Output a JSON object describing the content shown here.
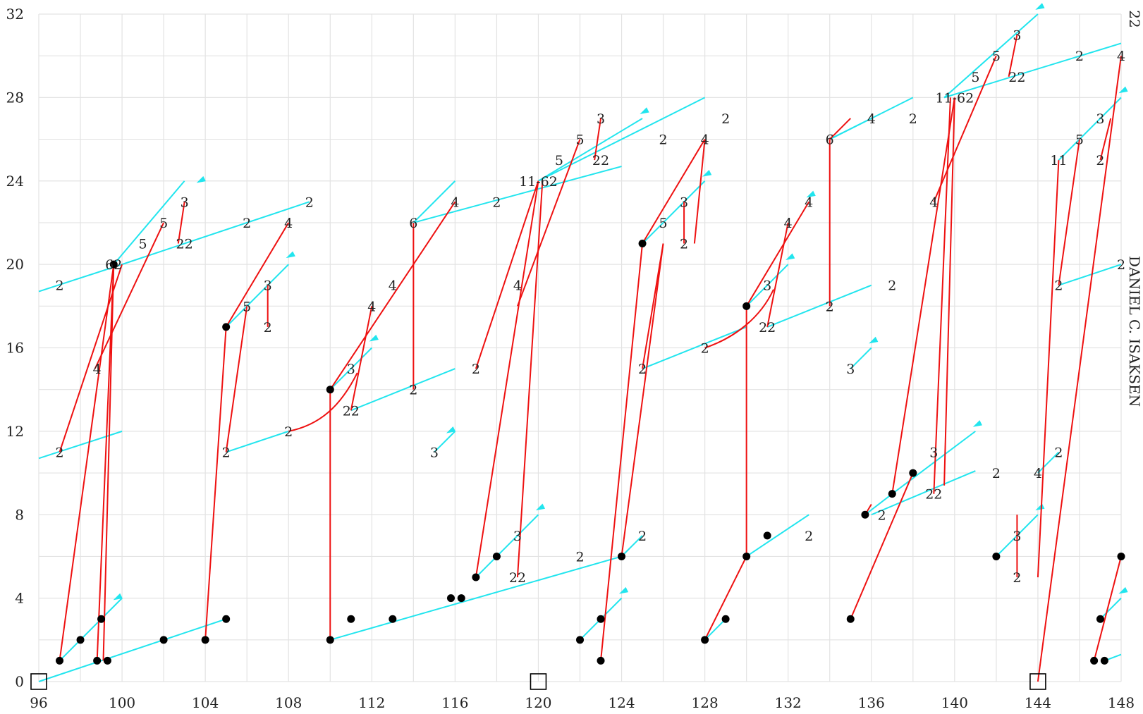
{
  "page_number": "22",
  "running_head": "DANIEL C. ISAKSEN",
  "colors": {
    "cyan": "#22e5ee",
    "red": "#ee1111",
    "dot": "#000000",
    "grid": "#e3e3e3"
  },
  "chart_data": {
    "type": "scatter",
    "xlim": [
      96,
      148
    ],
    "ylim": [
      0,
      32
    ],
    "grid": true,
    "xticks": [
      96,
      100,
      104,
      108,
      112,
      116,
      120,
      124,
      128,
      132,
      136,
      140,
      144,
      148
    ],
    "yticks": [
      0,
      4,
      8,
      12,
      16,
      20,
      24,
      28,
      32
    ],
    "boxes": [
      [
        96,
        0
      ],
      [
        120,
        0
      ],
      [
        144,
        0
      ]
    ],
    "dots": [
      [
        97,
        1
      ],
      [
        98,
        2
      ],
      [
        99,
        3
      ],
      [
        98.8,
        1
      ],
      [
        99.3,
        1
      ],
      [
        102,
        2
      ],
      [
        104,
        2
      ],
      [
        105,
        3
      ],
      [
        99.6,
        20
      ],
      [
        105,
        17
      ],
      [
        110,
        2
      ],
      [
        111,
        3
      ],
      [
        113,
        3
      ],
      [
        115.8,
        4
      ],
      [
        116.3,
        4
      ],
      [
        110,
        14
      ],
      [
        117,
        5
      ],
      [
        118,
        6
      ],
      [
        122,
        2
      ],
      [
        123,
        3
      ],
      [
        123,
        1
      ],
      [
        124,
        6
      ],
      [
        125,
        21
      ],
      [
        128,
        2
      ],
      [
        129,
        3
      ],
      [
        130,
        6
      ],
      [
        131,
        7
      ],
      [
        130,
        18
      ],
      [
        135,
        3
      ],
      [
        135.7,
        8
      ],
      [
        137,
        9
      ],
      [
        138,
        10
      ],
      [
        142,
        6
      ],
      [
        146.7,
        1
      ],
      [
        147,
        3
      ],
      [
        147.2,
        1
      ],
      [
        148,
        6
      ]
    ],
    "cyan_segments": [
      [
        96,
        0,
        105,
        3
      ],
      [
        97,
        1,
        100,
        4
      ],
      [
        96,
        10.7,
        100,
        12
      ],
      [
        100,
        20,
        109,
        23
      ],
      [
        96,
        18.7,
        100,
        20
      ],
      [
        99.6,
        20,
        103,
        24
      ],
      [
        105,
        11,
        108,
        12
      ],
      [
        105,
        17,
        108,
        20
      ],
      [
        110,
        2,
        124,
        6
      ],
      [
        110,
        14,
        112,
        16
      ],
      [
        111,
        13,
        116,
        15
      ],
      [
        114,
        22,
        124,
        24.7
      ],
      [
        114,
        22,
        116,
        24
      ],
      [
        124,
        6,
        125,
        7
      ],
      [
        117,
        5,
        120,
        8
      ],
      [
        120,
        24,
        125,
        27
      ],
      [
        120,
        24,
        128,
        28
      ],
      [
        125,
        15,
        130,
        17
      ],
      [
        125,
        21,
        128,
        24
      ],
      [
        122,
        2,
        124,
        4
      ],
      [
        128,
        2,
        129,
        3
      ],
      [
        130,
        6,
        133,
        8
      ],
      [
        130,
        18,
        132,
        20
      ],
      [
        131,
        17,
        136,
        19
      ],
      [
        134,
        26,
        138,
        28
      ],
      [
        134,
        26,
        136,
        27
      ],
      [
        135,
        15,
        136,
        16
      ],
      [
        136,
        8,
        141,
        10.1
      ],
      [
        135.7,
        8,
        137,
        9
      ],
      [
        137,
        9,
        141,
        12
      ],
      [
        139.5,
        28,
        148,
        30.6
      ],
      [
        139.5,
        28,
        144,
        32
      ],
      [
        142,
        6,
        144,
        8
      ],
      [
        145,
        25,
        148,
        28
      ],
      [
        145,
        19,
        148,
        20
      ],
      [
        144,
        10,
        145,
        11
      ],
      [
        147,
        3,
        148,
        4
      ],
      [
        147.2,
        1,
        148,
        1.3
      ],
      [
        115,
        11,
        116,
        12
      ]
    ],
    "red_segments": [
      [
        97,
        1,
        99.6,
        20
      ],
      [
        97,
        11,
        100,
        20
      ],
      [
        98.8,
        1,
        99.6,
        20
      ],
      [
        99.6,
        20,
        99.1,
        1
      ],
      [
        98.7,
        15,
        102,
        22
      ],
      [
        104,
        2,
        105,
        17
      ],
      [
        105,
        11,
        106,
        18
      ],
      [
        105,
        17,
        108,
        22
      ],
      [
        107,
        17,
        107,
        19
      ],
      [
        102.7,
        21,
        103,
        23
      ],
      [
        110,
        2,
        110,
        14
      ],
      [
        110,
        14,
        116,
        23
      ],
      [
        111,
        13,
        112,
        18
      ],
      [
        114,
        14,
        114,
        22
      ],
      [
        117,
        15,
        120,
        24
      ],
      [
        117,
        5,
        120,
        24
      ],
      [
        119,
        5,
        120.2,
        24
      ],
      [
        119,
        18,
        122,
        26
      ],
      [
        122.7,
        25,
        123,
        27
      ],
      [
        123,
        1,
        125,
        21
      ],
      [
        124,
        6,
        126,
        21
      ],
      [
        125,
        15,
        126,
        21
      ],
      [
        125,
        21,
        128,
        26
      ],
      [
        127,
        21,
        127,
        23
      ],
      [
        127.5,
        21,
        128,
        26
      ],
      [
        128,
        2,
        130,
        6
      ],
      [
        130,
        6,
        130,
        18
      ],
      [
        130,
        18,
        133,
        23
      ],
      [
        131,
        17,
        132,
        22
      ],
      [
        134,
        18,
        134,
        26
      ],
      [
        134,
        26,
        135,
        27
      ],
      [
        135,
        3,
        138,
        10
      ],
      [
        135.7,
        8,
        136,
        8.5
      ],
      [
        137,
        9,
        140,
        28
      ],
      [
        139,
        9,
        139.8,
        28
      ],
      [
        139.5,
        9.4,
        140,
        28
      ],
      [
        139,
        23,
        142,
        30
      ],
      [
        142.6,
        29,
        143,
        31
      ],
      [
        143,
        5,
        143,
        8
      ],
      [
        144,
        0,
        148,
        30
      ],
      [
        144,
        5,
        145,
        25
      ],
      [
        145,
        19,
        146,
        26
      ],
      [
        146.7,
        1,
        148,
        6
      ],
      [
        147,
        25,
        147.5,
        27
      ]
    ],
    "red_curves": [
      [
        [
          108,
          12
        ],
        [
          109.5,
          12.3
        ],
        [
          110.5,
          13.2
        ],
        [
          111.3,
          14.8
        ]
      ],
      [
        [
          128,
          16
        ],
        [
          129.5,
          16.5
        ],
        [
          130.7,
          17.5
        ],
        [
          131.3,
          18.8
        ]
      ]
    ],
    "arrows": [
      [
        99,
        3,
        100,
        4
      ],
      [
        103,
        24,
        104,
        24
      ],
      [
        108,
        20,
        108.3,
        20.4
      ],
      [
        112,
        16,
        112.3,
        16.4
      ],
      [
        116,
        12,
        116,
        12
      ],
      [
        120,
        8,
        120.3,
        8.3
      ],
      [
        125,
        27,
        125.3,
        27.3
      ],
      [
        128,
        24,
        128.3,
        24.3
      ],
      [
        124,
        4,
        124.3,
        4.3
      ],
      [
        132,
        20,
        132.3,
        20.3
      ],
      [
        133,
        23,
        133.3,
        23.3
      ],
      [
        136,
        16,
        136.3,
        16.3
      ],
      [
        141,
        12,
        141.3,
        12.3
      ],
      [
        144,
        32,
        144.3,
        32.3
      ],
      [
        144,
        8,
        144.3,
        8.3
      ],
      [
        148,
        28,
        148.3,
        28.3
      ],
      [
        148,
        4,
        148.3,
        4.3
      ]
    ],
    "labels": [
      {
        "x": 97,
        "y": 19,
        "t": "2"
      },
      {
        "x": 97,
        "y": 11,
        "t": "2"
      },
      {
        "x": 99.6,
        "y": 20,
        "t": "62"
      },
      {
        "x": 101,
        "y": 21,
        "t": "5"
      },
      {
        "x": 102,
        "y": 22,
        "t": "5"
      },
      {
        "x": 103,
        "y": 23,
        "t": "3"
      },
      {
        "x": 103,
        "y": 21,
        "t": "22"
      },
      {
        "x": 98.8,
        "y": 15,
        "t": "4"
      },
      {
        "x": 106,
        "y": 22,
        "t": "2"
      },
      {
        "x": 109,
        "y": 23,
        "t": "2"
      },
      {
        "x": 108,
        "y": 22,
        "t": "4"
      },
      {
        "x": 106,
        "y": 18,
        "t": "5"
      },
      {
        "x": 107,
        "y": 19,
        "t": "3"
      },
      {
        "x": 107,
        "y": 17,
        "t": "2"
      },
      {
        "x": 105,
        "y": 11,
        "t": "2"
      },
      {
        "x": 108,
        "y": 12,
        "t": "2"
      },
      {
        "x": 111,
        "y": 15,
        "t": "3"
      },
      {
        "x": 111,
        "y": 13,
        "t": "22"
      },
      {
        "x": 112,
        "y": 18,
        "t": "4"
      },
      {
        "x": 113,
        "y": 19,
        "t": "4"
      },
      {
        "x": 114,
        "y": 14,
        "t": "2"
      },
      {
        "x": 117,
        "y": 15,
        "t": "2"
      },
      {
        "x": 115,
        "y": 11,
        "t": "3"
      },
      {
        "x": 114,
        "y": 22,
        "t": "6"
      },
      {
        "x": 116,
        "y": 23,
        "t": "4"
      },
      {
        "x": 118,
        "y": 23,
        "t": "2"
      },
      {
        "x": 120,
        "y": 24,
        "t": "11-62"
      },
      {
        "x": 119,
        "y": 19,
        "t": "4"
      },
      {
        "x": 121,
        "y": 25,
        "t": "5"
      },
      {
        "x": 122,
        "y": 26,
        "t": "5"
      },
      {
        "x": 123,
        "y": 27,
        "t": "3"
      },
      {
        "x": 123,
        "y": 25,
        "t": "22"
      },
      {
        "x": 126,
        "y": 26,
        "t": "2"
      },
      {
        "x": 129,
        "y": 27,
        "t": "2"
      },
      {
        "x": 128,
        "y": 26,
        "t": "4"
      },
      {
        "x": 126,
        "y": 22,
        "t": "5"
      },
      {
        "x": 127,
        "y": 23,
        "t": "3"
      },
      {
        "x": 127,
        "y": 21,
        "t": "2"
      },
      {
        "x": 125,
        "y": 15,
        "t": "2"
      },
      {
        "x": 128,
        "y": 16,
        "t": "2"
      },
      {
        "x": 119,
        "y": 7,
        "t": "3"
      },
      {
        "x": 119,
        "y": 5,
        "t": "22"
      },
      {
        "x": 122,
        "y": 6,
        "t": "2"
      },
      {
        "x": 125,
        "y": 7,
        "t": "2"
      },
      {
        "x": 131,
        "y": 19,
        "t": "3"
      },
      {
        "x": 131,
        "y": 17,
        "t": "22"
      },
      {
        "x": 132,
        "y": 22,
        "t": "4"
      },
      {
        "x": 133,
        "y": 23,
        "t": "4"
      },
      {
        "x": 134,
        "y": 18,
        "t": "2"
      },
      {
        "x": 137,
        "y": 19,
        "t": "2"
      },
      {
        "x": 135,
        "y": 15,
        "t": "3"
      },
      {
        "x": 134,
        "y": 26,
        "t": "6"
      },
      {
        "x": 136,
        "y": 27,
        "t": "4"
      },
      {
        "x": 138,
        "y": 27,
        "t": "2"
      },
      {
        "x": 140,
        "y": 28,
        "t": "11-62"
      },
      {
        "x": 139,
        "y": 23,
        "t": "4"
      },
      {
        "x": 141,
        "y": 29,
        "t": "5"
      },
      {
        "x": 142,
        "y": 30,
        "t": "5"
      },
      {
        "x": 143,
        "y": 31,
        "t": "3"
      },
      {
        "x": 143,
        "y": 29,
        "t": "22"
      },
      {
        "x": 146,
        "y": 30,
        "t": "2"
      },
      {
        "x": 148,
        "y": 30,
        "t": "4"
      },
      {
        "x": 145,
        "y": 25,
        "t": "11"
      },
      {
        "x": 146,
        "y": 26,
        "t": "5"
      },
      {
        "x": 147,
        "y": 27,
        "t": "3"
      },
      {
        "x": 147,
        "y": 25,
        "t": "2"
      },
      {
        "x": 145,
        "y": 19,
        "t": "2"
      },
      {
        "x": 148,
        "y": 20,
        "t": "2"
      },
      {
        "x": 133,
        "y": 7,
        "t": "2"
      },
      {
        "x": 136.5,
        "y": 8,
        "t": "2"
      },
      {
        "x": 139,
        "y": 11,
        "t": "3"
      },
      {
        "x": 139,
        "y": 9,
        "t": "22"
      },
      {
        "x": 142,
        "y": 10,
        "t": "2"
      },
      {
        "x": 145,
        "y": 11,
        "t": "2"
      },
      {
        "x": 144,
        "y": 10,
        "t": "4"
      },
      {
        "x": 143,
        "y": 7,
        "t": "3"
      },
      {
        "x": 143,
        "y": 5,
        "t": "2"
      }
    ]
  }
}
